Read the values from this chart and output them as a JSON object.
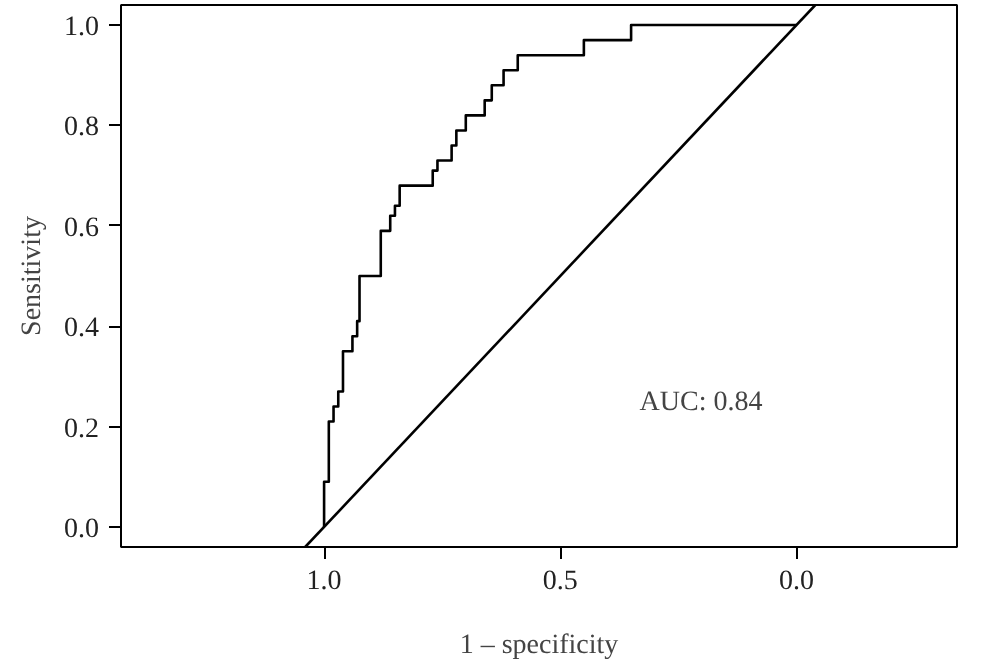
{
  "chart_data": {
    "type": "line",
    "xlabel": "1 – specificity",
    "ylabel": "Sensitivity",
    "xlim": [
      1.43,
      -0.34
    ],
    "ylim": [
      -0.04,
      1.04
    ],
    "xticks": [
      {
        "value": 1.0,
        "label": "1.0"
      },
      {
        "value": 0.5,
        "label": "0.5"
      },
      {
        "value": 0.0,
        "label": "0.0"
      }
    ],
    "yticks": [
      {
        "value": 0.0,
        "label": "0.0"
      },
      {
        "value": 0.2,
        "label": "0.2"
      },
      {
        "value": 0.4,
        "label": "0.4"
      },
      {
        "value": 0.6,
        "label": "0.6"
      },
      {
        "value": 0.8,
        "label": "0.8"
      },
      {
        "value": 1.0,
        "label": "1.0"
      }
    ],
    "grid": false,
    "marker": "none",
    "line_style": "solid",
    "annotations": [
      "AUC: 0.84"
    ],
    "series": [
      {
        "color": "#000000",
        "x": [
          1.0,
          1.0,
          0.99,
          0.99,
          0.98,
          0.98,
          0.97,
          0.97,
          0.96,
          0.96,
          0.94,
          0.94,
          0.93,
          0.93,
          0.925,
          0.925,
          0.88,
          0.88,
          0.86,
          0.86,
          0.85,
          0.85,
          0.84,
          0.84,
          0.77,
          0.77,
          0.76,
          0.76,
          0.73,
          0.73,
          0.72,
          0.72,
          0.7,
          0.7,
          0.66,
          0.66,
          0.645,
          0.645,
          0.62,
          0.62,
          0.59,
          0.59,
          0.45,
          0.45,
          0.35,
          0.35,
          0.0
        ],
        "values": [
          0.0,
          0.09,
          0.09,
          0.21,
          0.21,
          0.24,
          0.24,
          0.27,
          0.27,
          0.35,
          0.35,
          0.38,
          0.38,
          0.41,
          0.41,
          0.5,
          0.5,
          0.59,
          0.59,
          0.62,
          0.62,
          0.64,
          0.64,
          0.68,
          0.68,
          0.71,
          0.71,
          0.73,
          0.73,
          0.76,
          0.76,
          0.79,
          0.79,
          0.82,
          0.82,
          0.85,
          0.85,
          0.88,
          0.88,
          0.91,
          0.91,
          0.94,
          0.94,
          0.97,
          0.97,
          1.0,
          1.0
        ]
      },
      {
        "color": "#000000",
        "x": [
          1.04,
          -0.04
        ],
        "values": [
          -0.04,
          1.04
        ]
      }
    ]
  }
}
